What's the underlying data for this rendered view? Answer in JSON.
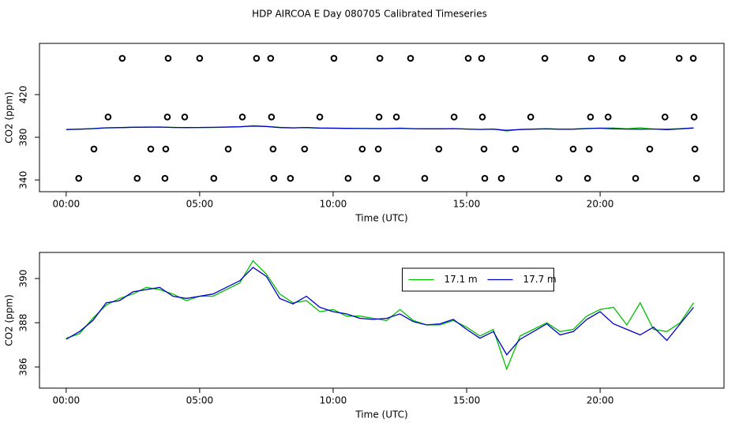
{
  "title": "HDP AIRCOA E  Day 080705  Calibrated Timeseries",
  "chart_data": [
    {
      "type": "line",
      "ylabel": "CO2 (ppm)",
      "xlabel": "Time (UTC)",
      "xlim": [
        -1.0,
        24.64
      ],
      "ylim": [
        329,
        468
      ],
      "xticks": [
        {
          "value": 0,
          "label": "00:00"
        },
        {
          "value": 5,
          "label": "05:00"
        },
        {
          "value": 10,
          "label": "10:00"
        },
        {
          "value": 15,
          "label": "15:00"
        },
        {
          "value": 20,
          "label": "20:00"
        }
      ],
      "yticks": [
        340,
        380,
        420
      ],
      "x": [
        0,
        0.5,
        1,
        1.5,
        2,
        2.5,
        3,
        3.5,
        4,
        4.5,
        5,
        5.5,
        6,
        6.5,
        7,
        7.5,
        8,
        8.5,
        9,
        9.5,
        10,
        10.5,
        11,
        11.5,
        12,
        12.5,
        13,
        13.5,
        14,
        14.5,
        15,
        15.5,
        16,
        16.5,
        17,
        17.5,
        18,
        18.5,
        19,
        19.5,
        20,
        20.5,
        21,
        21.5,
        22,
        22.5,
        23,
        23.5
      ],
      "series": [
        {
          "color": "#00c000",
          "values": [
            387.3,
            387.5,
            388.2,
            388.8,
            389.1,
            389.3,
            389.6,
            389.5,
            389.3,
            389.0,
            389.2,
            389.2,
            389.5,
            389.8,
            390.8,
            390.2,
            389.3,
            388.9,
            389.0,
            388.5,
            388.6,
            388.3,
            388.3,
            388.2,
            388.1,
            388.6,
            388.1,
            387.9,
            387.9,
            388.1,
            387.8,
            387.4,
            387.7,
            385.9,
            387.4,
            387.7,
            388.0,
            387.6,
            387.7,
            388.3,
            388.6,
            388.7,
            387.9,
            388.9,
            387.7,
            387.6,
            388.0,
            388.9
          ]
        },
        {
          "color": "#0000cc",
          "values": [
            387.25,
            387.6,
            388.1,
            388.9,
            389.0,
            389.4,
            389.5,
            389.6,
            389.2,
            389.1,
            389.2,
            389.3,
            389.6,
            389.9,
            390.5,
            390.1,
            389.1,
            388.85,
            389.2,
            388.7,
            388.5,
            388.4,
            388.2,
            388.15,
            388.2,
            388.4,
            388.05,
            387.9,
            387.95,
            388.15,
            387.7,
            387.3,
            387.6,
            386.55,
            387.25,
            387.6,
            387.95,
            387.45,
            387.6,
            388.15,
            388.5,
            387.95,
            387.7,
            387.45,
            387.8,
            387.2,
            387.95,
            388.7
          ]
        }
      ],
      "points": {
        "color": "#000000",
        "x": [
          2.1,
          3.82,
          5.0,
          7.13,
          7.66,
          10.03,
          11.75,
          12.9,
          15.06,
          15.56,
          17.93,
          19.67,
          20.83,
          22.96,
          23.49,
          1.57,
          3.79,
          4.44,
          6.6,
          7.69,
          9.5,
          11.72,
          12.37,
          14.53,
          15.59,
          17.4,
          19.64,
          20.3,
          22.43,
          23.52,
          1.04,
          3.17,
          3.73,
          6.07,
          7.75,
          8.93,
          11.09,
          11.69,
          13.96,
          15.65,
          16.83,
          18.99,
          19.59,
          21.86,
          23.55,
          0.47,
          2.66,
          3.7,
          5.53,
          7.78,
          8.4,
          10.56,
          11.63,
          13.43,
          15.68,
          16.3,
          18.46,
          19.53,
          21.33,
          23.61
        ],
        "y": [
          454,
          454,
          454,
          454,
          454,
          454,
          454,
          454,
          454,
          454,
          454,
          454,
          454,
          454,
          454,
          399,
          399,
          399,
          399,
          399,
          399,
          399,
          399,
          399,
          399,
          399,
          399,
          399,
          399,
          399,
          369,
          369,
          369,
          369,
          369,
          369,
          369,
          369,
          369,
          369,
          369,
          369,
          369,
          369,
          369,
          341.5,
          341.5,
          341.5,
          341.5,
          341.5,
          341.5,
          341.5,
          341.5,
          341.5,
          341.5,
          341.5,
          341.5,
          341.5,
          341.5,
          341.5
        ]
      }
    },
    {
      "type": "line",
      "ylabel": "CO2 (ppm)",
      "xlabel": "Time (UTC)",
      "xlim": [
        -1.0,
        24.64
      ],
      "ylim": [
        385.04,
        391.18
      ],
      "xticks": [
        {
          "value": 0,
          "label": "00:00"
        },
        {
          "value": 5,
          "label": "05:00"
        },
        {
          "value": 10,
          "label": "10:00"
        },
        {
          "value": 15,
          "label": "15:00"
        },
        {
          "value": 20,
          "label": "20:00"
        }
      ],
      "yticks": [
        386,
        388,
        390
      ],
      "legend": "top",
      "x": [
        0,
        0.5,
        1,
        1.5,
        2,
        2.5,
        3,
        3.5,
        4,
        4.5,
        5,
        5.5,
        6,
        6.5,
        7,
        7.5,
        8,
        8.5,
        9,
        9.5,
        10,
        10.5,
        11,
        11.5,
        12,
        12.5,
        13,
        13.5,
        14,
        14.5,
        15,
        15.5,
        16,
        16.5,
        17,
        17.5,
        18,
        18.5,
        19,
        19.5,
        20,
        20.5,
        21,
        21.5,
        22,
        22.5,
        23,
        23.5
      ],
      "series": [
        {
          "name": "17.1 m",
          "color": "#00c000",
          "values": [
            387.3,
            387.5,
            388.2,
            388.8,
            389.1,
            389.3,
            389.6,
            389.5,
            389.3,
            389.0,
            389.2,
            389.2,
            389.5,
            389.8,
            390.8,
            390.2,
            389.3,
            388.9,
            389.0,
            388.5,
            388.6,
            388.3,
            388.3,
            388.2,
            388.1,
            388.6,
            388.1,
            387.9,
            387.9,
            388.1,
            387.8,
            387.4,
            387.7,
            385.9,
            387.4,
            387.7,
            388.0,
            387.6,
            387.7,
            388.3,
            388.6,
            388.7,
            387.9,
            388.9,
            387.7,
            387.6,
            388.0,
            388.9
          ]
        },
        {
          "name": "17.7 m",
          "color": "#0000cc",
          "values": [
            387.25,
            387.6,
            388.1,
            388.9,
            389.0,
            389.4,
            389.5,
            389.6,
            389.2,
            389.1,
            389.2,
            389.3,
            389.6,
            389.9,
            390.5,
            390.1,
            389.1,
            388.85,
            389.2,
            388.7,
            388.5,
            388.4,
            388.2,
            388.15,
            388.2,
            388.4,
            388.05,
            387.9,
            387.95,
            388.15,
            387.7,
            387.3,
            387.6,
            386.55,
            387.25,
            387.6,
            387.95,
            387.45,
            387.6,
            388.15,
            388.5,
            387.95,
            387.7,
            387.45,
            387.8,
            387.2,
            387.95,
            388.7
          ]
        }
      ]
    }
  ]
}
